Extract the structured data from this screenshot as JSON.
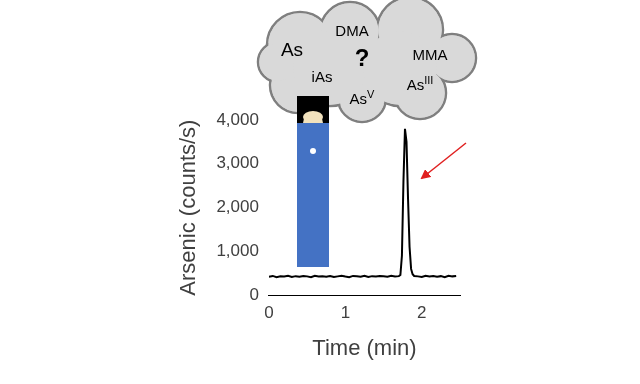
{
  "chart_data": {
    "type": "line",
    "x_label": "Time (min)",
    "y_label": "Arsenic (counts/s)",
    "x": [
      0,
      0.05,
      0.1,
      0.15,
      0.2,
      0.25,
      0.3,
      0.35,
      0.4,
      0.45,
      0.5,
      0.55,
      0.6,
      0.65,
      0.7,
      0.75,
      0.8,
      0.85,
      0.9,
      0.95,
      1.0,
      1.05,
      1.1,
      1.15,
      1.2,
      1.25,
      1.3,
      1.35,
      1.4,
      1.45,
      1.5,
      1.55,
      1.6,
      1.65,
      1.7,
      1.72,
      1.74,
      1.76,
      1.78,
      1.8,
      1.82,
      1.84,
      1.86,
      1.88,
      1.9,
      1.95,
      2.0,
      2.05,
      2.1,
      2.15,
      2.2,
      2.25,
      2.3,
      2.35,
      2.4,
      2.45
    ],
    "values": [
      420,
      440,
      410,
      430,
      425,
      445,
      415,
      435,
      420,
      440,
      430,
      410,
      445,
      425,
      435,
      420,
      440,
      415,
      430,
      445,
      425,
      410,
      440,
      430,
      420,
      445,
      415,
      435,
      425,
      440,
      430,
      420,
      445,
      425,
      435,
      460,
      900,
      2600,
      3800,
      3500,
      2200,
      1100,
      600,
      480,
      440,
      430,
      415,
      445,
      425,
      440,
      420,
      435,
      410,
      445,
      430,
      440
    ],
    "color": "#000000",
    "xlim": [
      0,
      2.5
    ],
    "xticks": [
      0,
      1,
      2
    ],
    "ylim": [
      0,
      4000
    ],
    "yticks": [
      0,
      1000,
      2000,
      3000,
      4000
    ],
    "grid": false,
    "annotations": [
      {
        "text": "As"
      },
      {
        "text": "DMA"
      },
      {
        "text": "?"
      },
      {
        "text": "MMA"
      },
      {
        "text": "iAs"
      },
      {
        "text": "As",
        "superscript": "V"
      },
      {
        "text": "As",
        "superscript": "III"
      }
    ]
  }
}
